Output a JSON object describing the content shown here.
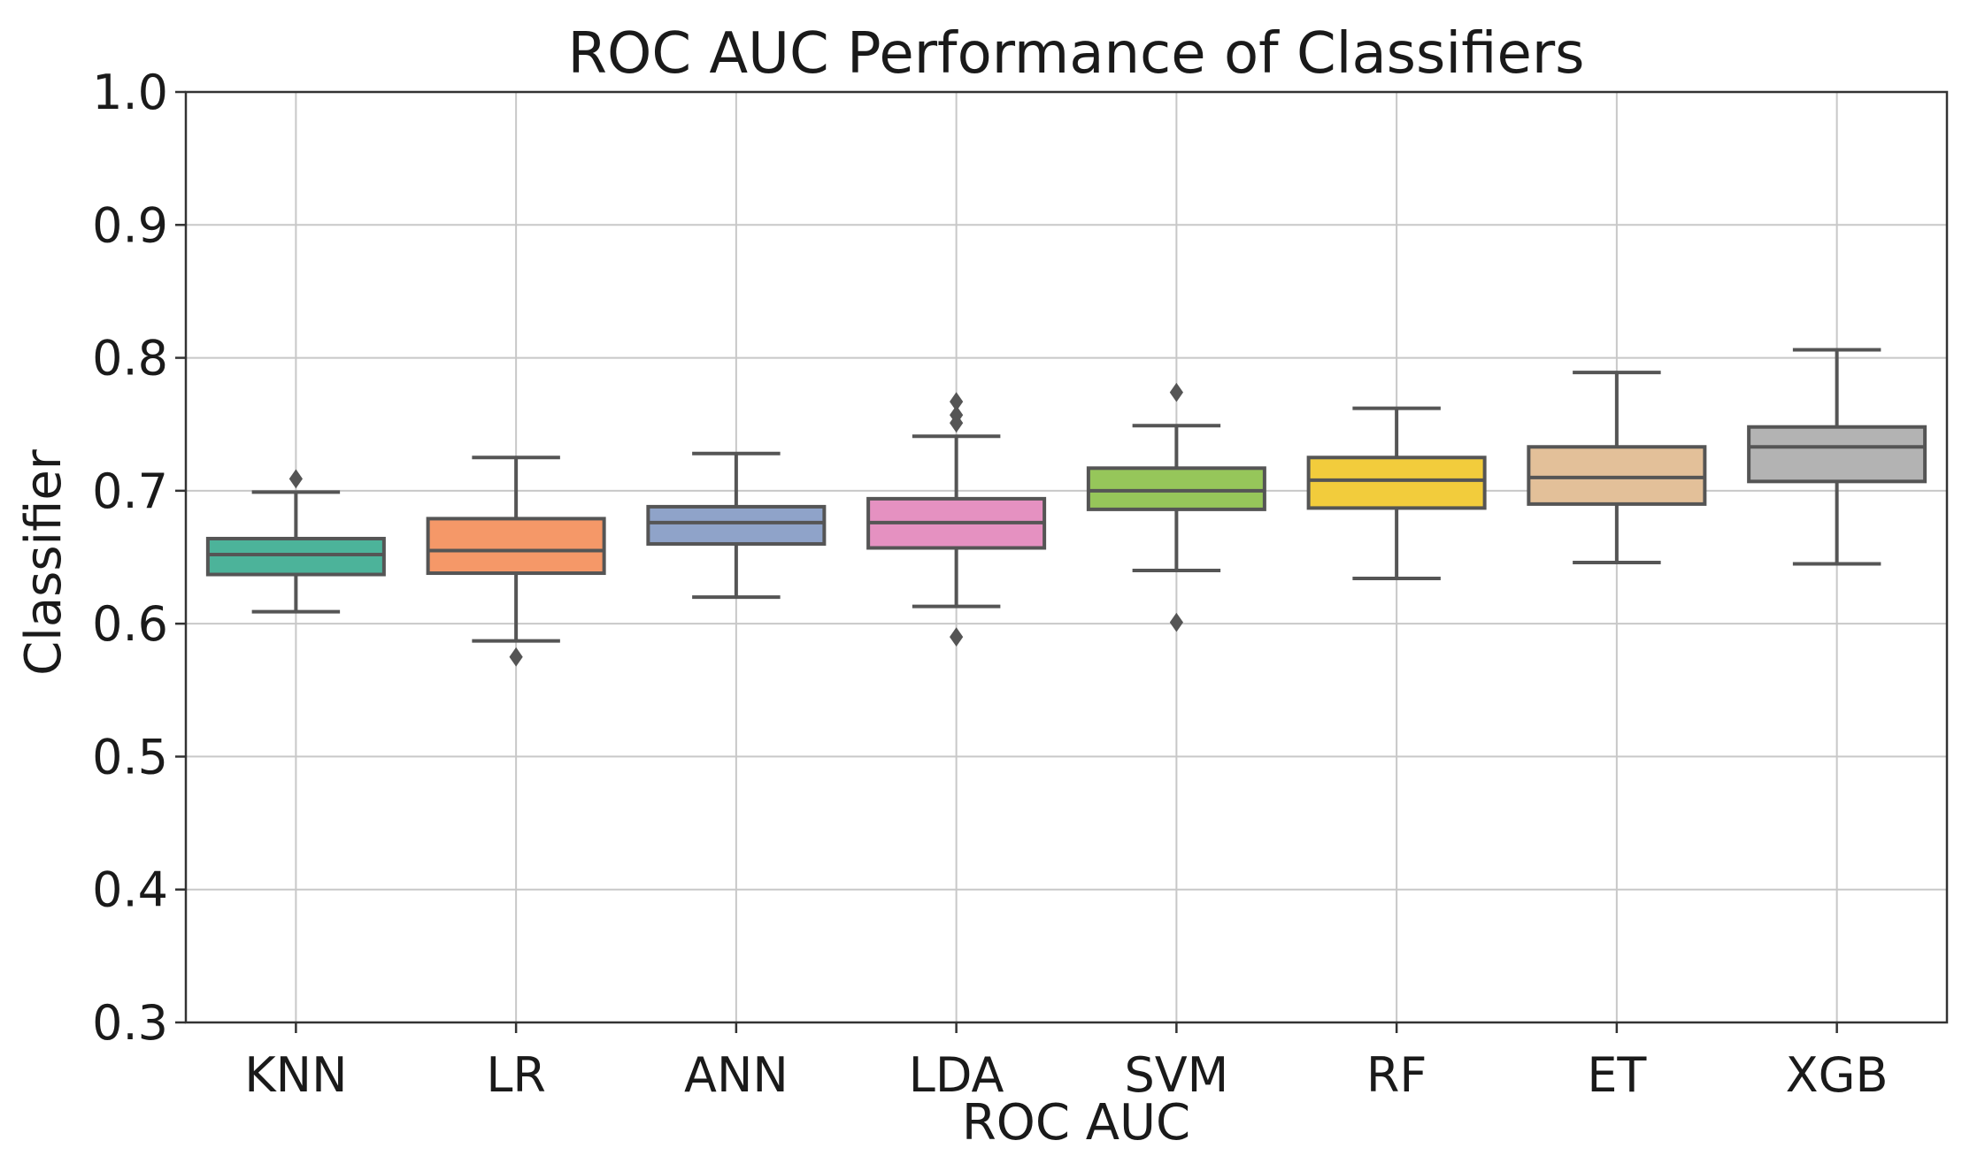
{
  "chart_data": {
    "type": "box",
    "title": "ROC AUC Performance of Classifiers",
    "xlabel": "ROC AUC",
    "ylabel": "Classifier",
    "ylim": [
      0.3,
      1.0
    ],
    "yticks": [
      "0.3",
      "0.4",
      "0.5",
      "0.6",
      "0.7",
      "0.8",
      "0.9",
      "1.0"
    ],
    "grid": true,
    "categories": [
      "KNN",
      "LR",
      "ANN",
      "LDA",
      "SVM",
      "RF",
      "ET",
      "XGB"
    ],
    "boxes": [
      {
        "name": "KNN",
        "color": "#4cb39a",
        "whisker_low": 0.609,
        "q1": 0.637,
        "median": 0.652,
        "q3": 0.664,
        "whisker_high": 0.699,
        "outliers": [
          0.709
        ]
      },
      {
        "name": "LR",
        "color": "#f59868",
        "whisker_low": 0.587,
        "q1": 0.638,
        "median": 0.655,
        "q3": 0.679,
        "whisker_high": 0.725,
        "outliers": [
          0.575
        ]
      },
      {
        "name": "ANN",
        "color": "#8fa3c9",
        "whisker_low": 0.62,
        "q1": 0.66,
        "median": 0.676,
        "q3": 0.688,
        "whisker_high": 0.728,
        "outliers": []
      },
      {
        "name": "LDA",
        "color": "#e591c1",
        "whisker_low": 0.613,
        "q1": 0.657,
        "median": 0.676,
        "q3": 0.694,
        "whisker_high": 0.741,
        "outliers": [
          0.59,
          0.751,
          0.757,
          0.767
        ]
      },
      {
        "name": "SVM",
        "color": "#96c65a",
        "whisker_low": 0.64,
        "q1": 0.686,
        "median": 0.7,
        "q3": 0.717,
        "whisker_high": 0.749,
        "outliers": [
          0.601,
          0.774
        ]
      },
      {
        "name": "RF",
        "color": "#f2cc3c",
        "whisker_low": 0.634,
        "q1": 0.687,
        "median": 0.708,
        "q3": 0.725,
        "whisker_high": 0.762,
        "outliers": []
      },
      {
        "name": "ET",
        "color": "#e3c099",
        "whisker_low": 0.646,
        "q1": 0.69,
        "median": 0.71,
        "q3": 0.733,
        "whisker_high": 0.789,
        "outliers": []
      },
      {
        "name": "XGB",
        "color": "#b3b3b3",
        "whisker_low": 0.645,
        "q1": 0.707,
        "median": 0.733,
        "q3": 0.748,
        "whisker_high": 0.806,
        "outliers": []
      }
    ]
  }
}
